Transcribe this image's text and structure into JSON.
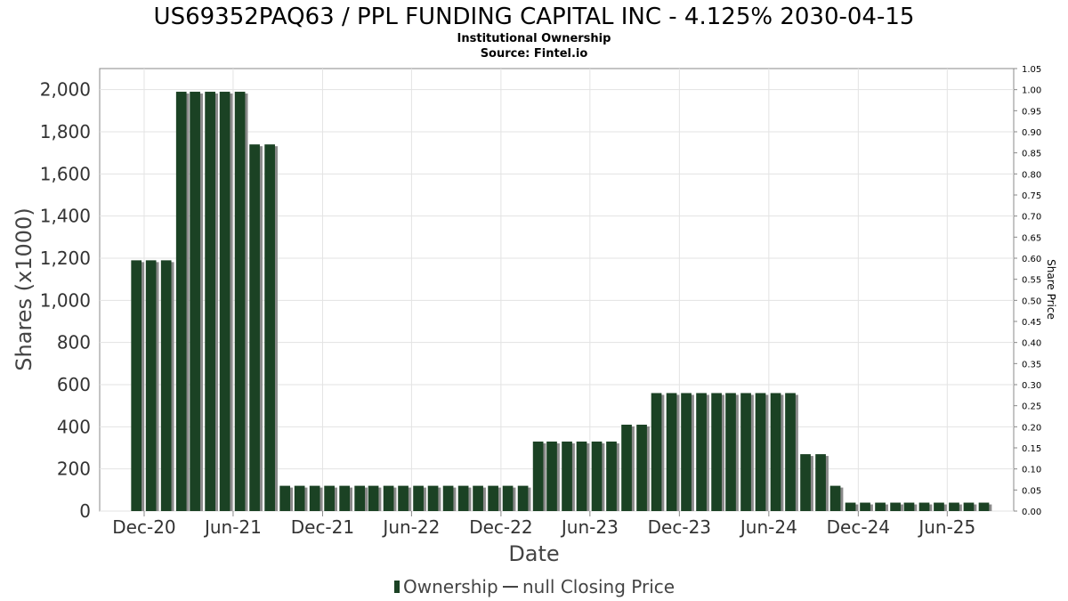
{
  "chart_data": {
    "type": "bar",
    "title": "US69352PAQ63 / PPL FUNDING CAPITAL INC - 4.125% 2030-04-15",
    "subtitle": "Institutional Ownership",
    "source": "Source: Fintel.io",
    "xlabel": "Date",
    "ylabel": "Shares (x1000)",
    "ylabel_right": "Share Price",
    "x_range": [
      "2020-09-01",
      "2025-10-15"
    ],
    "ylim": [
      0,
      2100
    ],
    "ylim_right": [
      0,
      1.05
    ],
    "y_ticks": [
      "0",
      "200",
      "400",
      "600",
      "800",
      "1,000",
      "1,200",
      "1,400",
      "1,600",
      "1,800",
      "2,000"
    ],
    "y_right_ticks": [
      "0.00",
      "0.05",
      "0.10",
      "0.15",
      "0.20",
      "0.25",
      "0.30",
      "0.35",
      "0.40",
      "0.45",
      "0.50",
      "0.55",
      "0.60",
      "0.65",
      "0.70",
      "0.75",
      "0.80",
      "0.85",
      "0.90",
      "0.95",
      "1.00",
      "1.05"
    ],
    "x_ticks": [
      {
        "label": "Dec-20",
        "date": "2020-12-01"
      },
      {
        "label": "Jun-21",
        "date": "2021-06-01"
      },
      {
        "label": "Dec-21",
        "date": "2021-12-01"
      },
      {
        "label": "Jun-22",
        "date": "2022-06-01"
      },
      {
        "label": "Dec-22",
        "date": "2022-12-01"
      },
      {
        "label": "Jun-23",
        "date": "2023-06-01"
      },
      {
        "label": "Dec-23",
        "date": "2023-12-01"
      },
      {
        "label": "Jun-24",
        "date": "2024-06-01"
      },
      {
        "label": "Dec-24",
        "date": "2024-12-01"
      },
      {
        "label": "Jun-25",
        "date": "2025-06-01"
      }
    ],
    "grid": true,
    "series": [
      {
        "name": "Ownership",
        "color": "#1b4224",
        "points": [
          {
            "x": "2020-11-15",
            "y": 1190
          },
          {
            "x": "2020-12-15",
            "y": 1190
          },
          {
            "x": "2021-01-15",
            "y": 1190
          },
          {
            "x": "2021-02-15",
            "y": 1990
          },
          {
            "x": "2021-03-15",
            "y": 1990
          },
          {
            "x": "2021-04-15",
            "y": 1990
          },
          {
            "x": "2021-05-15",
            "y": 1990
          },
          {
            "x": "2021-06-15",
            "y": 1990
          },
          {
            "x": "2021-07-15",
            "y": 1740
          },
          {
            "x": "2021-08-15",
            "y": 1740
          },
          {
            "x": "2021-09-15",
            "y": 120
          },
          {
            "x": "2021-10-15",
            "y": 120
          },
          {
            "x": "2021-11-15",
            "y": 120
          },
          {
            "x": "2021-12-15",
            "y": 120
          },
          {
            "x": "2022-01-15",
            "y": 120
          },
          {
            "x": "2022-02-15",
            "y": 120
          },
          {
            "x": "2022-03-15",
            "y": 120
          },
          {
            "x": "2022-04-15",
            "y": 120
          },
          {
            "x": "2022-05-15",
            "y": 120
          },
          {
            "x": "2022-06-15",
            "y": 120
          },
          {
            "x": "2022-07-15",
            "y": 120
          },
          {
            "x": "2022-08-15",
            "y": 120
          },
          {
            "x": "2022-09-15",
            "y": 120
          },
          {
            "x": "2022-10-15",
            "y": 120
          },
          {
            "x": "2022-11-15",
            "y": 120
          },
          {
            "x": "2022-12-15",
            "y": 120
          },
          {
            "x": "2023-01-15",
            "y": 120
          },
          {
            "x": "2023-02-15",
            "y": 330
          },
          {
            "x": "2023-03-15",
            "y": 330
          },
          {
            "x": "2023-04-15",
            "y": 330
          },
          {
            "x": "2023-05-15",
            "y": 330
          },
          {
            "x": "2023-06-15",
            "y": 330
          },
          {
            "x": "2023-07-15",
            "y": 330
          },
          {
            "x": "2023-08-15",
            "y": 410
          },
          {
            "x": "2023-09-15",
            "y": 410
          },
          {
            "x": "2023-10-15",
            "y": 560
          },
          {
            "x": "2023-11-15",
            "y": 560
          },
          {
            "x": "2023-12-15",
            "y": 560
          },
          {
            "x": "2024-01-15",
            "y": 560
          },
          {
            "x": "2024-02-15",
            "y": 560
          },
          {
            "x": "2024-03-15",
            "y": 560
          },
          {
            "x": "2024-04-15",
            "y": 560
          },
          {
            "x": "2024-05-15",
            "y": 560
          },
          {
            "x": "2024-06-15",
            "y": 560
          },
          {
            "x": "2024-07-15",
            "y": 560
          },
          {
            "x": "2024-08-15",
            "y": 270
          },
          {
            "x": "2024-09-15",
            "y": 270
          },
          {
            "x": "2024-10-15",
            "y": 120
          },
          {
            "x": "2024-11-15",
            "y": 40
          },
          {
            "x": "2024-12-15",
            "y": 40
          },
          {
            "x": "2025-01-15",
            "y": 40
          },
          {
            "x": "2025-02-15",
            "y": 40
          },
          {
            "x": "2025-03-15",
            "y": 40
          },
          {
            "x": "2025-04-15",
            "y": 40
          },
          {
            "x": "2025-05-15",
            "y": 40
          },
          {
            "x": "2025-06-15",
            "y": 40
          },
          {
            "x": "2025-07-15",
            "y": 40
          },
          {
            "x": "2025-08-15",
            "y": 40
          }
        ]
      },
      {
        "name": "null Closing Price",
        "color": "#444444",
        "points": []
      }
    ],
    "legend": {
      "position": "bottom-center",
      "items": [
        "Ownership",
        "null Closing Price"
      ]
    }
  }
}
